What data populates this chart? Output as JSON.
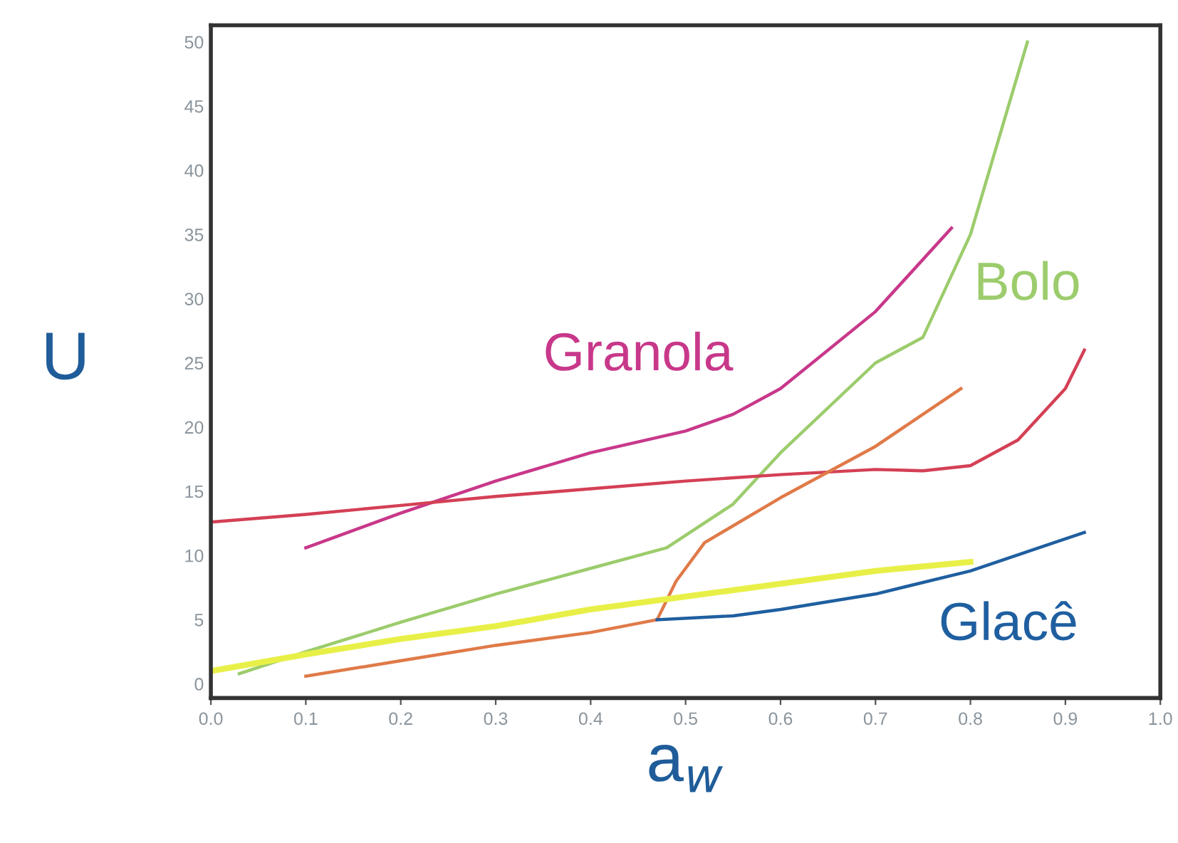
{
  "chart_data": {
    "type": "line",
    "xlabel": "a$_{w}$",
    "ylabel": "U",
    "xlim": [
      0,
      1.0
    ],
    "ylim": [
      -1.1,
      51.3
    ],
    "xticks": [
      {
        "value": 0,
        "label": "0.0"
      },
      0.1,
      0.2,
      0.3,
      0.4,
      0.5,
      0.6,
      0.7,
      0.8,
      0.9,
      {
        "value": 1.0,
        "label": "1.0"
      }
    ],
    "yticks": [
      0,
      5,
      10,
      15,
      20,
      25,
      30,
      35,
      40,
      45,
      50
    ],
    "grid": false,
    "legend": false,
    "marker": "none",
    "line_style": "solid",
    "series": [
      {
        "name": "Granola",
        "color": "#c8388a",
        "x": [
          0.1,
          0.2,
          0.3,
          0.4,
          0.5,
          0.55,
          0.6,
          0.7,
          0.78
        ],
        "values": [
          10.6,
          13.3,
          15.8,
          18,
          19.7,
          21,
          23,
          29,
          35.5
        ]
      },
      {
        "name": "Bolo",
        "color": "#9ccc6c",
        "x": [
          0.03,
          0.1,
          0.2,
          0.3,
          0.4,
          0.48,
          0.55,
          0.6,
          0.7,
          0.75,
          0.8,
          0.84,
          0.86
        ],
        "values": [
          0.8,
          2.5,
          4.8,
          7,
          9,
          10.6,
          14,
          18,
          25,
          27,
          35,
          45,
          50
        ]
      },
      {
        "color": "#d44055",
        "x": [
          0.0,
          0.1,
          0.2,
          0.3,
          0.4,
          0.5,
          0.6,
          0.7,
          0.75,
          0.8,
          0.85,
          0.9,
          0.92
        ],
        "values": [
          12.6,
          13.2,
          13.9,
          14.6,
          15.2,
          15.8,
          16.3,
          16.7,
          16.6,
          17,
          19,
          23,
          26
        ]
      },
      {
        "color": "#e07a48",
        "x": [
          0.1,
          0.2,
          0.3,
          0.4,
          0.47,
          0.49,
          0.52,
          0.6,
          0.7,
          0.76,
          0.79
        ],
        "values": [
          0.6,
          1.8,
          3,
          4,
          5,
          8,
          11,
          14.5,
          18.5,
          21.5,
          23
        ]
      },
      {
        "color": "#e8f048",
        "x": [
          0.0,
          0.1,
          0.2,
          0.3,
          0.4,
          0.5,
          0.6,
          0.7,
          0.8
        ],
        "values": [
          1,
          2.3,
          3.5,
          4.5,
          5.8,
          6.8,
          7.8,
          8.8,
          9.5
        ]
      },
      {
        "name": "Glacê",
        "color": "#1f5fa0",
        "x": [
          0.47,
          0.55,
          0.6,
          0.7,
          0.8,
          0.92
        ],
        "values": [
          5,
          5.3,
          5.8,
          7,
          8.8,
          11.8
        ]
      }
    ]
  }
}
